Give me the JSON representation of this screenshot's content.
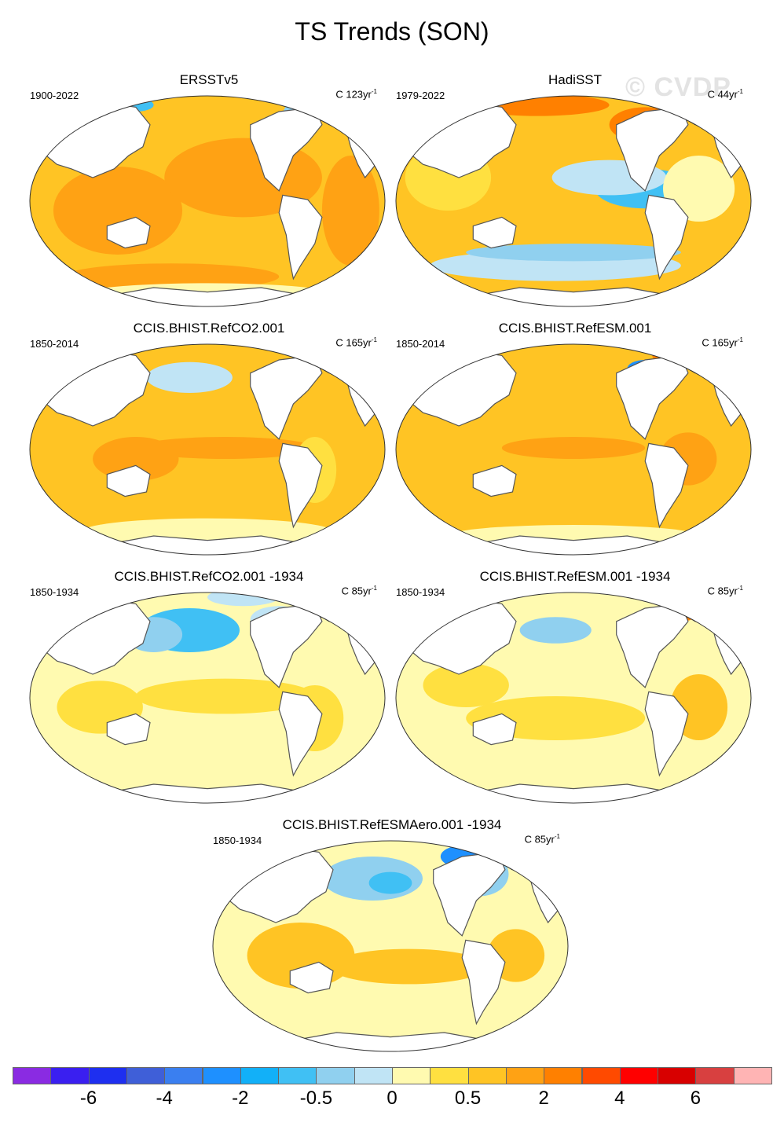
{
  "title": "TS Trends (SON)",
  "watermark": "© CVDP",
  "panels": [
    {
      "title": "ERSSTv5",
      "period": "1900-2022",
      "units_base": "C 123yr",
      "units_exp": "-1",
      "scheme": "ersst"
    },
    {
      "title": "HadiSST",
      "period": "1979-2022",
      "units_base": "C 44yr",
      "units_exp": "-1",
      "scheme": "hadi"
    },
    {
      "title": "CCIS.BHIST.RefCO2.001",
      "period": "1850-2014",
      "units_base": "C 165yr",
      "units_exp": "-1",
      "scheme": "co2"
    },
    {
      "title": "CCIS.BHIST.RefESM.001",
      "period": "1850-2014",
      "units_base": "C 165yr",
      "units_exp": "-1",
      "scheme": "esm"
    },
    {
      "title": "CCIS.BHIST.RefCO2.001 -1934",
      "period": "1850-1934",
      "units_base": "C 85yr",
      "units_exp": "-1",
      "scheme": "co2_1934"
    },
    {
      "title": "CCIS.BHIST.RefESM.001 -1934",
      "period": "1850-1934",
      "units_base": "C 85yr",
      "units_exp": "-1",
      "scheme": "esm_1934"
    },
    {
      "title": "CCIS.BHIST.RefESMAero.001 -1934",
      "period": "1850-1934",
      "units_base": "C 85yr",
      "units_exp": "-1",
      "scheme": "aero_1934"
    }
  ],
  "colorbar": {
    "colors": [
      "#8a2be2",
      "#3a1ff0",
      "#1e2ff0",
      "#3f5fd8",
      "#3a7ff0",
      "#1e90ff",
      "#12b0f8",
      "#40c0f4",
      "#90d0ef",
      "#c0e4f5",
      "#fffab0",
      "#ffe040",
      "#ffc424",
      "#ffa214",
      "#ff8000",
      "#ff4a00",
      "#ff0000",
      "#d80000",
      "#d84040",
      "#ffb4b4"
    ],
    "labels": [
      "-6",
      "-4",
      "-2",
      "-0.5",
      "0",
      "0.5",
      "2",
      "4",
      "6"
    ]
  }
}
